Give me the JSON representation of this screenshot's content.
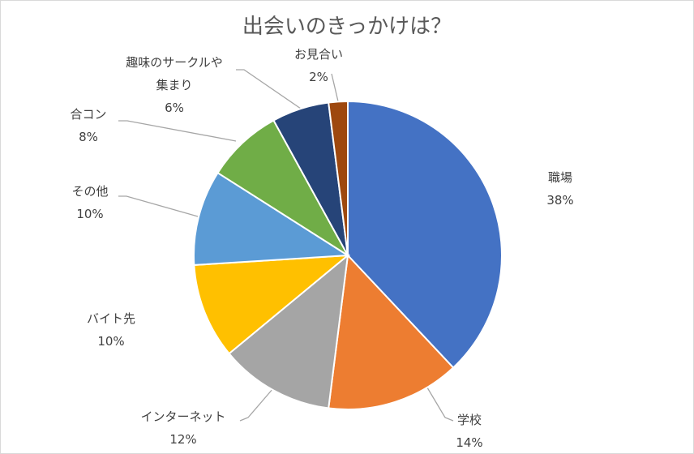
{
  "chart_data": {
    "type": "pie",
    "title": "出会いのきっかけは？",
    "slices": [
      {
        "label_lines": [
          "職場"
        ],
        "value": 38,
        "value_label": "38%",
        "color": "#4472c4"
      },
      {
        "label_lines": [
          "学校"
        ],
        "value": 14,
        "value_label": "14%",
        "color": "#ed7d31"
      },
      {
        "label_lines": [
          "インターネット"
        ],
        "value": 12,
        "value_label": "12%",
        "color": "#a5a5a5"
      },
      {
        "label_lines": [
          "バイト先"
        ],
        "value": 10,
        "value_label": "10%",
        "color": "#ffc000"
      },
      {
        "label_lines": [
          "その他"
        ],
        "value": 10,
        "value_label": "10%",
        "color": "#5b9bd5"
      },
      {
        "label_lines": [
          "合コン"
        ],
        "value": 8,
        "value_label": "8%",
        "color": "#70ad47"
      },
      {
        "label_lines": [
          "趣味のサークルや",
          "集まり"
        ],
        "value": 6,
        "value_label": "6%",
        "color": "#264478"
      },
      {
        "label_lines": [
          "お見合い"
        ],
        "value": 2,
        "value_label": "2%",
        "color": "#9e480e"
      }
    ],
    "start_angle": "12 o'clock",
    "direction": "clockwise",
    "labels": "outside with leader lines",
    "legend": "none"
  }
}
